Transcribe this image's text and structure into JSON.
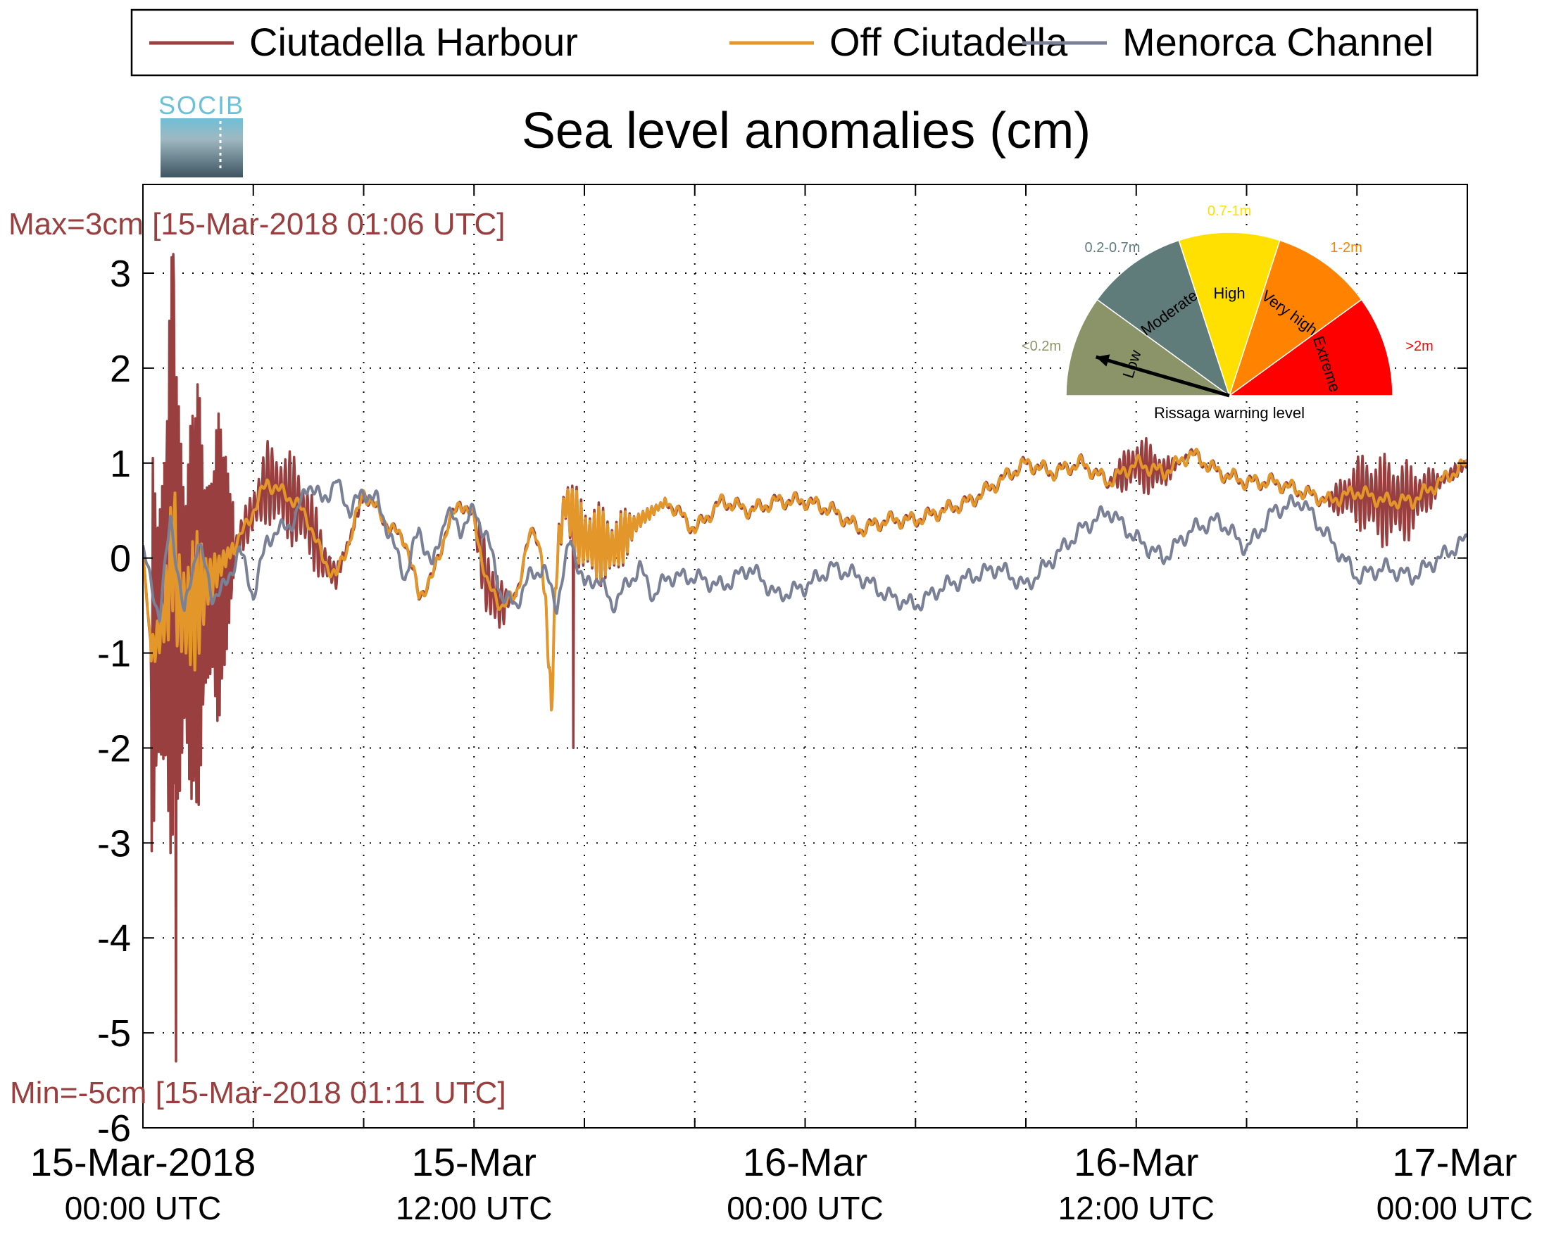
{
  "chart_data": {
    "type": "line",
    "title": "Sea level anomalies (cm)",
    "xlabel": "",
    "ylabel": "",
    "ylim": [
      -6,
      3.5
    ],
    "xlim_hours": [
      0,
      48
    ],
    "yticks": [
      3,
      2,
      1,
      0,
      -1,
      -2,
      -3,
      -4,
      -5,
      -6
    ],
    "yticks_text": [
      "3",
      "2",
      "1",
      "0",
      "-1",
      "-2",
      "-3",
      "-4",
      "-5",
      "-6"
    ],
    "xticks": [
      {
        "hours": 0,
        "date": "15-Mar-2018",
        "time": "00:00 UTC"
      },
      {
        "hours": 12,
        "date": "15-Mar",
        "time": "12:00 UTC"
      },
      {
        "hours": 24,
        "date": "16-Mar",
        "time": "00:00 UTC"
      },
      {
        "hours": 36,
        "date": "16-Mar",
        "time": "12:00 UTC"
      },
      {
        "hours": 48,
        "date": "17-Mar",
        "time": "00:00 UTC"
      }
    ],
    "grid": true,
    "legend_position": "top",
    "max_annotation": "Max=3cm [15-Mar-2018 01:06 UTC]",
    "min_annotation": "Min=-5cm [15-Mar-2018 01:11 UTC]",
    "series": [
      {
        "name": "Ciutadella Harbour",
        "color": "#9a3f3f",
        "x_hours": [
          0,
          0.3,
          0.6,
          0.9,
          1.1,
          1.3,
          1.6,
          2,
          2.5,
          3,
          3.5,
          4,
          4.5,
          5,
          5.5,
          6,
          6.5,
          7,
          7.5,
          8,
          8.5,
          9,
          9.5,
          10,
          10.5,
          11,
          11.5,
          12,
          12.5,
          13,
          13.5,
          14,
          14.2,
          14.4,
          14.6,
          14.8,
          15,
          15.3,
          15.6,
          16,
          17,
          18,
          19,
          20,
          21,
          22,
          23,
          24,
          25,
          26,
          27,
          28,
          29,
          30,
          31,
          32,
          33,
          34,
          35,
          36,
          37,
          38,
          39,
          40,
          41,
          42,
          43,
          44,
          45,
          46,
          47,
          48
        ],
        "values": [
          0.0,
          -1.0,
          -0.8,
          -0.4,
          0.2,
          -0.5,
          -0.6,
          -0.4,
          -0.2,
          0.0,
          0.2,
          0.5,
          0.8,
          0.7,
          0.6,
          0.4,
          0.0,
          -0.2,
          0.2,
          0.7,
          0.5,
          0.3,
          0.2,
          -0.4,
          -0.2,
          0.3,
          0.6,
          0.4,
          -0.3,
          -0.5,
          -0.4,
          0.2,
          0.3,
          0.1,
          -0.5,
          -1.6,
          0.0,
          0.6,
          0.4,
          0.2,
          0.1,
          0.4,
          0.6,
          0.3,
          0.6,
          0.5,
          0.6,
          0.6,
          0.5,
          0.3,
          0.4,
          0.4,
          0.5,
          0.6,
          0.8,
          1.0,
          0.9,
          1.0,
          0.8,
          1.0,
          0.9,
          1.1,
          0.9,
          0.8,
          0.8,
          0.7,
          0.6,
          0.7,
          0.6,
          0.6,
          0.8,
          1.0
        ],
        "high_freq_oscillation": [
          {
            "from_hours": 0.3,
            "to_hours": 3.3,
            "amplitude_cm": 3.2
          },
          {
            "from_hours": 3.3,
            "to_hours": 8,
            "amplitude_cm": 0.5
          },
          {
            "from_hours": 12,
            "to_hours": 13.5,
            "amplitude_cm": 0.45
          },
          {
            "from_hours": 14.4,
            "to_hours": 19,
            "amplitude_cm": 0.45
          },
          {
            "from_hours": 35,
            "to_hours": 38,
            "amplitude_cm": 0.3
          },
          {
            "from_hours": 43,
            "to_hours": 48,
            "amplitude_cm": 0.5
          }
        ],
        "extremes": [
          {
            "hours": 1.1,
            "value": 3.2
          },
          {
            "hours": 1.2,
            "value": -5.3
          },
          {
            "hours": 15.6,
            "value": -2.0
          }
        ]
      },
      {
        "name": "Off Ciutadella",
        "color": "#e3962a",
        "x_hours": [
          0,
          0.3,
          0.6,
          0.9,
          1.1,
          1.3,
          1.6,
          2,
          2.5,
          3,
          3.5,
          4,
          4.5,
          5,
          5.5,
          6,
          6.5,
          7,
          7.5,
          8,
          8.5,
          9,
          9.5,
          10,
          10.5,
          11,
          11.5,
          12,
          12.5,
          13,
          13.5,
          14,
          14.2,
          14.4,
          14.6,
          14.8,
          15,
          15.3,
          15.6,
          16,
          17,
          18,
          19,
          20,
          21,
          22,
          23,
          24,
          25,
          26,
          27,
          28,
          29,
          30,
          31,
          32,
          33,
          34,
          35,
          36,
          37,
          38,
          39,
          40,
          41,
          42,
          43,
          44,
          45,
          46,
          47,
          48
        ],
        "values": [
          0.0,
          -1.0,
          -0.8,
          -0.4,
          0.2,
          -0.5,
          -0.6,
          -0.4,
          -0.2,
          0.0,
          0.2,
          0.5,
          0.8,
          0.7,
          0.6,
          0.4,
          0.0,
          -0.2,
          0.2,
          0.7,
          0.5,
          0.3,
          0.2,
          -0.4,
          -0.2,
          0.3,
          0.6,
          0.4,
          -0.3,
          -0.5,
          -0.4,
          0.2,
          0.3,
          0.1,
          -0.5,
          -1.6,
          0.0,
          0.6,
          0.4,
          0.2,
          0.1,
          0.4,
          0.6,
          0.3,
          0.6,
          0.5,
          0.6,
          0.6,
          0.5,
          0.3,
          0.4,
          0.4,
          0.5,
          0.6,
          0.8,
          1.0,
          0.9,
          1.0,
          0.8,
          1.0,
          0.9,
          1.1,
          0.9,
          0.8,
          0.8,
          0.7,
          0.6,
          0.7,
          0.6,
          0.6,
          0.8,
          1.0
        ],
        "high_freq_oscillation": [
          {
            "from_hours": 0.3,
            "to_hours": 3.3,
            "amplitude_cm": 0.8
          },
          {
            "from_hours": 14.4,
            "to_hours": 19,
            "amplitude_cm": 0.4
          }
        ]
      },
      {
        "name": "Menorca Channel",
        "color": "#7a8197",
        "x_hours": [
          0,
          0.3,
          0.6,
          1,
          1.5,
          2,
          2.5,
          3,
          3.5,
          4,
          4.5,
          5,
          5.5,
          6,
          6.5,
          7,
          7.5,
          8,
          8.5,
          9,
          9.5,
          10,
          10.5,
          11,
          11.5,
          12,
          12.5,
          13,
          13.5,
          14,
          14.5,
          15,
          15.5,
          16,
          16.5,
          17,
          17.5,
          18,
          18.5,
          19,
          20,
          21,
          22,
          23,
          24,
          25,
          26,
          27,
          28,
          29,
          30,
          31,
          32,
          33,
          34,
          35,
          36,
          37,
          38,
          39,
          40,
          41,
          42,
          43,
          44,
          45,
          46,
          47,
          48
        ],
        "values": [
          0.1,
          -0.3,
          -0.6,
          0.4,
          -0.6,
          0.2,
          -0.4,
          -0.3,
          0.1,
          -0.4,
          0.2,
          0.3,
          0.4,
          0.8,
          0.6,
          0.8,
          0.5,
          0.7,
          0.6,
          0.2,
          -0.2,
          0.3,
          -0.1,
          0.5,
          0.3,
          0.5,
          0.2,
          -0.4,
          -0.5,
          -0.2,
          -0.1,
          -0.5,
          0.2,
          -0.3,
          -0.2,
          -0.5,
          -0.3,
          -0.1,
          -0.4,
          -0.2,
          -0.2,
          -0.3,
          -0.1,
          -0.4,
          -0.3,
          -0.1,
          -0.2,
          -0.4,
          -0.5,
          -0.3,
          -0.2,
          -0.1,
          -0.3,
          0.0,
          0.3,
          0.5,
          0.2,
          0.0,
          0.3,
          0.4,
          0.1,
          0.5,
          0.6,
          0.2,
          -0.2,
          -0.1,
          -0.2,
          0.0,
          0.2
        ]
      }
    ],
    "warning_gauge": {
      "title": "Rissaga warning level",
      "value_level": "Low",
      "segments": [
        {
          "label": "Low",
          "range": "<0.2m",
          "color": "#8a9468"
        },
        {
          "label": "Moderate",
          "range": "0.2-0.7m",
          "color": "#5f7b7a"
        },
        {
          "label": "High",
          "range": "0.7-1m",
          "color": "#ffe000"
        },
        {
          "label": "Very high",
          "range": "1-2m",
          "color": "#ff8200"
        },
        {
          "label": "Extreme",
          "range": ">2m",
          "color": "#ff0000"
        }
      ],
      "needle_fraction": 0.09
    },
    "logo_text": "SOCIB"
  }
}
